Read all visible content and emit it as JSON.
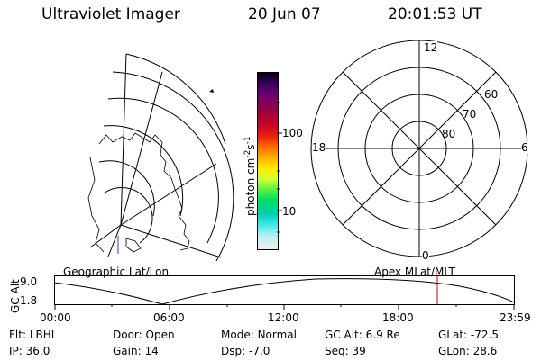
{
  "header": {
    "title": "Ultraviolet Imager",
    "date": "20 Jun 07",
    "time": "20:01:53 UT"
  },
  "colorbar": {
    "label": "photon cm",
    "label_sup1": "-2",
    "label_mid": "s",
    "label_sup2": "-1",
    "ticks": [
      "100",
      "10"
    ]
  },
  "polar": {
    "mlt_labels": [
      "12",
      "18",
      "6",
      "0"
    ],
    "lat_labels": [
      "60",
      "70",
      "80"
    ]
  },
  "timeline": {
    "left_label": "Geographic Lat/Lon",
    "right_label": "Apex MLat/MLT",
    "yaxis_label": "GC Alt",
    "yticks": [
      "9.0",
      "1.8"
    ],
    "xticks": [
      "00:00",
      "06:00",
      "12:00",
      "18:00",
      "23:59"
    ]
  },
  "info": {
    "row1": [
      {
        "key": "Flt:",
        "val": "LBHL"
      },
      {
        "key": "Door:",
        "val": "Open"
      },
      {
        "key": "Mode:",
        "val": "Normal"
      },
      {
        "key": "GC Alt:",
        "val": "6.9 Re"
      },
      {
        "key": "GLat:",
        "val": "-72.5"
      }
    ],
    "row2": [
      {
        "key": "IP:",
        "val": "36.0"
      },
      {
        "key": "Gain:",
        "val": "14"
      },
      {
        "key": "Dsp:",
        "val": "-7.0"
      },
      {
        "key": "Seq:",
        "val": "39"
      },
      {
        "key": "GLon:",
        "val": "28.6"
      }
    ]
  },
  "colors": {
    "marker": "#cc0000",
    "foreground": "#000000",
    "background": "#ffffff"
  }
}
